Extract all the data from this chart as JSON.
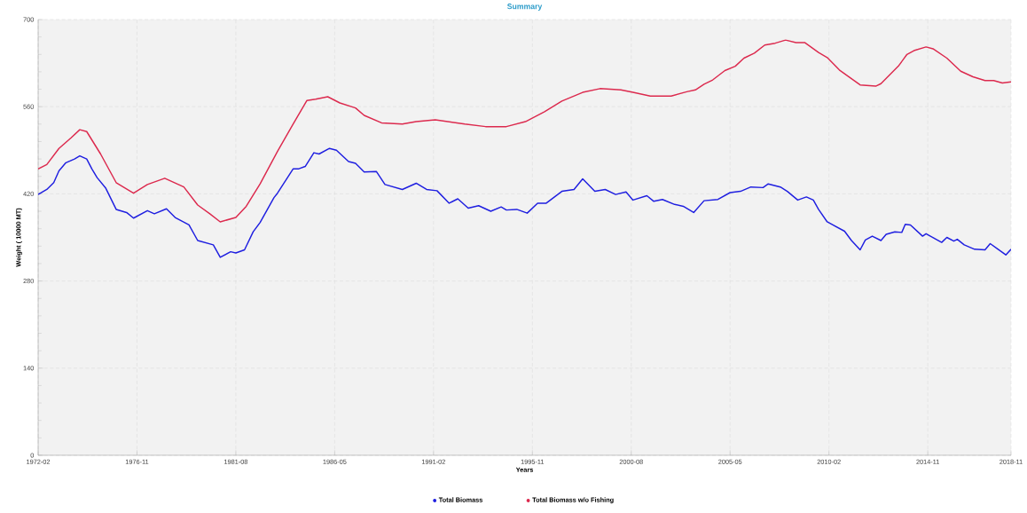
{
  "chart_data": {
    "type": "line",
    "title": "Summary",
    "xlabel": "Years",
    "ylabel": "Weight ( 10000 MT)",
    "series": [
      {
        "name": "Total Biomass",
        "color": "#1f1fe0",
        "x": [
          "1972-02",
          "1972-07",
          "1972-11",
          "1973-02",
          "1973-06",
          "1973-11",
          "1974-02",
          "1974-06",
          "1974-09",
          "1974-12",
          "1975-05",
          "1975-11",
          "1976-05",
          "1976-09",
          "1977-05",
          "1977-09",
          "1978-04",
          "1978-09",
          "1979-05",
          "1979-10",
          "1980-07",
          "1980-11",
          "1981-05",
          "1981-08",
          "1982-01",
          "1982-06",
          "1982-10",
          "1983-06",
          "1983-08",
          "1984-05",
          "1984-08",
          "1984-12",
          "1985-05",
          "1985-08",
          "1986-02",
          "1986-06",
          "1987-01",
          "1987-05",
          "1987-10",
          "1988-05",
          "1988-10",
          "1989-08",
          "1990-04",
          "1990-10",
          "1991-04",
          "1991-11",
          "1992-04",
          "1992-10",
          "1993-04",
          "1993-11",
          "1994-05",
          "1994-08",
          "1995-02",
          "1995-08",
          "1996-02",
          "1996-07",
          "1997-04",
          "1997-11",
          "1998-04",
          "1998-11",
          "1999-05",
          "1999-11",
          "2000-05",
          "2000-09",
          "2001-05",
          "2001-09",
          "2002-02",
          "2002-09",
          "2003-02",
          "2003-08",
          "2004-02",
          "2004-10",
          "2005-05",
          "2005-11",
          "2006-05",
          "2006-12",
          "2007-03",
          "2007-10",
          "2008-02",
          "2008-08",
          "2009-01",
          "2009-05",
          "2009-08",
          "2010-01",
          "2010-11",
          "2011-03",
          "2011-08",
          "2011-11",
          "2012-03",
          "2012-08",
          "2012-11",
          "2013-04",
          "2013-08",
          "2013-10",
          "2014-01",
          "2014-08",
          "2014-10",
          "2015-07",
          "2015-10",
          "2016-02",
          "2016-04",
          "2016-08",
          "2017-02",
          "2017-08",
          "2017-11",
          "2018-03",
          "2018-08",
          "2018-11"
        ],
        "values": [
          419,
          427,
          438,
          457,
          470,
          476,
          481,
          476,
          460,
          446,
          429,
          395,
          390,
          381,
          393,
          388,
          396,
          382,
          370,
          345,
          338,
          318,
          327,
          325,
          330,
          359,
          374,
          414,
          421,
          460,
          460,
          464,
          486,
          484,
          493,
          490,
          472,
          469,
          455,
          456,
          435,
          427,
          437,
          427,
          425,
          405,
          412,
          397,
          401,
          392,
          399,
          394,
          395,
          389,
          405,
          405,
          424,
          427,
          444,
          424,
          427,
          419,
          423,
          410,
          417,
          408,
          411,
          403,
          400,
          390,
          409,
          411,
          422,
          424,
          431,
          430,
          436,
          431,
          424,
          410,
          415,
          410,
          395,
          375,
          360,
          345,
          330,
          346,
          352,
          345,
          355,
          359,
          358,
          371,
          370,
          352,
          356,
          342,
          350,
          344,
          347,
          338,
          331,
          330,
          340,
          332,
          322,
          331
        ]
      },
      {
        "name": "Total Biomass w/o Fishing",
        "color": "#dc2a4e",
        "x": [
          "1972-02",
          "1972-07",
          "1973-02",
          "1973-09",
          "1974-02",
          "1974-06",
          "1975-02",
          "1975-11",
          "1976-09",
          "1977-05",
          "1978-03",
          "1979-02",
          "1979-10",
          "1980-05",
          "1980-11",
          "1981-08",
          "1982-02",
          "1982-10",
          "1983-08",
          "1984-05",
          "1985-01",
          "1985-06",
          "1986-01",
          "1986-08",
          "1987-05",
          "1987-10",
          "1988-08",
          "1989-08",
          "1990-04",
          "1991-03",
          "1992-08",
          "1993-08",
          "1994-08",
          "1995-07",
          "1996-06",
          "1997-04",
          "1998-04",
          "1999-02",
          "2000-02",
          "2000-09",
          "2001-07",
          "2002-07",
          "2003-04",
          "2003-09",
          "2004-02",
          "2004-07",
          "2005-02",
          "2005-08",
          "2006-01",
          "2006-07",
          "2007-01",
          "2007-07",
          "2008-01",
          "2008-07",
          "2008-12",
          "2009-08",
          "2010-01",
          "2010-08",
          "2011-01",
          "2011-08",
          "2012-05",
          "2012-08",
          "2013-06",
          "2013-11",
          "2014-03",
          "2014-10",
          "2015-02",
          "2015-10",
          "2016-06",
          "2017-01",
          "2017-08",
          "2018-01",
          "2018-06",
          "2018-11"
        ],
        "values": [
          460,
          467,
          493,
          510,
          523,
          520,
          484,
          438,
          421,
          435,
          445,
          431,
          402,
          388,
          375,
          382,
          400,
          436,
          488,
          532,
          570,
          572,
          576,
          566,
          558,
          546,
          534,
          532,
          536,
          539,
          532,
          528,
          528,
          536,
          552,
          569,
          583,
          589,
          587,
          583,
          577,
          577,
          584,
          587,
          596,
          603,
          618,
          625,
          638,
          646,
          659,
          662,
          667,
          663,
          663,
          647,
          639,
          619,
          609,
          595,
          593,
          597,
          625,
          644,
          650,
          656,
          653,
          638,
          617,
          608,
          602,
          602,
          598,
          600
        ]
      }
    ],
    "xlim": [
      "1972-02",
      "2018-11"
    ],
    "xticks": [
      "1972-02",
      "1976-11",
      "1981-08",
      "1986-05",
      "1991-02",
      "1995-11",
      "2000-08",
      "2005-05",
      "2010-02",
      "2014-11",
      "2018-11"
    ],
    "ylim": [
      0,
      700
    ],
    "yticks": [
      0,
      140,
      280,
      420,
      560,
      700
    ],
    "grid": true,
    "legend": "bottom",
    "marker": "none",
    "line_style": "solid"
  }
}
